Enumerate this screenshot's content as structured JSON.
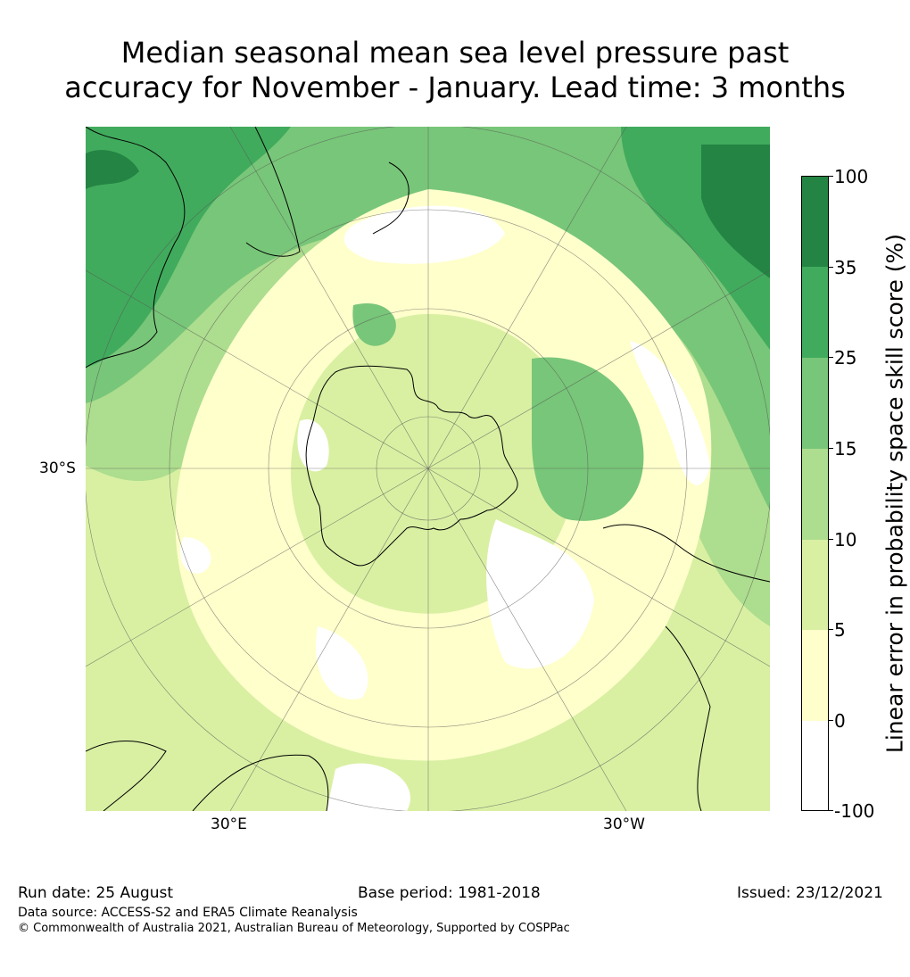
{
  "title": {
    "line1": "Median seasonal mean sea level pressure past",
    "line2": "accuracy for November - January. Lead time: 3 months"
  },
  "map": {
    "projection": "south-polar-stereographic",
    "lon_labels": [
      "30°E",
      "30°W"
    ],
    "lat_labels": [
      "30°S"
    ],
    "palette": {
      "bin_neg100_0": "#ffffff",
      "bin_0_5": "#ffffcc",
      "bin_5_10": "#d9f0a3",
      "bin_10_15": "#addd8e",
      "bin_15_25": "#78c679",
      "bin_25_35": "#41ab5d",
      "bin_35_100": "#238443"
    }
  },
  "colorbar": {
    "label": "Linear error in probability space skill score (%)",
    "ticks": [
      "100",
      "35",
      "25",
      "15",
      "10",
      "5",
      "0",
      "-100"
    ],
    "colors": [
      "#238443",
      "#41ab5d",
      "#78c679",
      "#addd8e",
      "#d9f0a3",
      "#ffffcc",
      "#ffffff"
    ]
  },
  "footer": {
    "run_date": "Run date: 25 August",
    "base_period": "Base period: 1981-2018",
    "issued": "Issued: 23/12/2021",
    "data_source": "Data source: ACCESS-S2 and ERA5 Climate Reanalysis",
    "copyright": "© Commonwealth of Australia 2021, Australian Bureau of Meteorology, Supported by COSPPac"
  }
}
